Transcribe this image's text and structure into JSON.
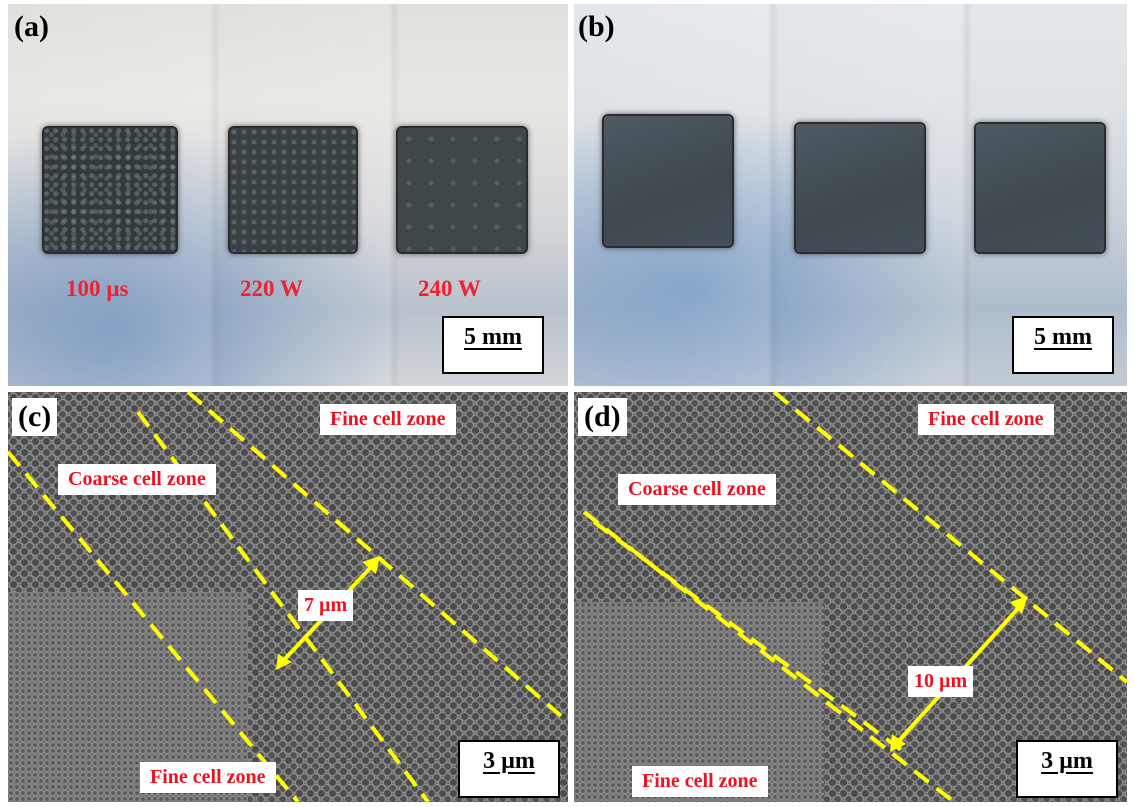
{
  "panels": {
    "a": {
      "tag": "(a)",
      "params": [
        "100 µs",
        "220 W",
        "240 W"
      ],
      "scale_bar": "5 mm"
    },
    "b": {
      "tag": "(b)",
      "scale_bar": "5 mm"
    },
    "c": {
      "tag": "(c)",
      "zone_top": "Fine cell zone",
      "zone_middle": "Coarse cell zone",
      "zone_bottom": "Fine cell zone",
      "width": "7 µm",
      "scale_bar": "3 µm"
    },
    "d": {
      "tag": "(d)",
      "zone_top": "Fine cell zone",
      "zone_middle": "Coarse cell zone",
      "zone_bottom": "Fine cell zone",
      "width": "10 µm",
      "scale_bar": "3 µm"
    }
  },
  "colors": {
    "label_red": "#ee1122",
    "boundary_yellow": "#ffff00",
    "background": "#ffffff"
  }
}
